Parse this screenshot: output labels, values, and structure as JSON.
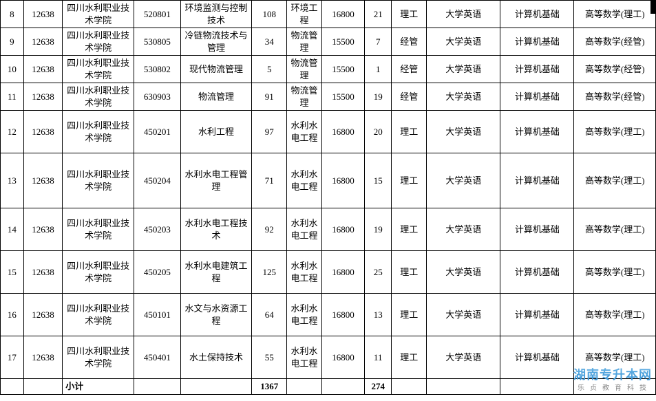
{
  "table": {
    "colWidthsClass": [
      "c0",
      "c1",
      "c2",
      "c3",
      "c4",
      "c5",
      "c6",
      "c7",
      "c8",
      "c9",
      "c10",
      "c11",
      "c12"
    ],
    "border_color": "#000000",
    "background_color": "#ffffff",
    "text_color": "#000000",
    "font_size": 13,
    "rows": [
      {
        "h": "short",
        "cells": [
          "8",
          "12638",
          "四川水利职业技术学院",
          "520801",
          "环境监测与控制技术",
          "108",
          "环境工程",
          "16800",
          "21",
          "理工",
          "大学英语",
          "计算机基础",
          "高等数学(理工)"
        ]
      },
      {
        "h": "short",
        "cells": [
          "9",
          "12638",
          "四川水利职业技术学院",
          "530805",
          "冷链物流技术与管理",
          "34",
          "物流管理",
          "15500",
          "7",
          "经管",
          "大学英语",
          "计算机基础",
          "高等数学(经管)"
        ]
      },
      {
        "h": "short",
        "cells": [
          "10",
          "12638",
          "四川水利职业技术学院",
          "530802",
          "现代物流管理",
          "5",
          "物流管理",
          "15500",
          "1",
          "经管",
          "大学英语",
          "计算机基础",
          "高等数学(经管)"
        ]
      },
      {
        "h": "short",
        "cells": [
          "11",
          "12638",
          "四川水利职业技术学院",
          "630903",
          "物流管理",
          "91",
          "物流管理",
          "15500",
          "19",
          "经管",
          "大学英语",
          "计算机基础",
          "高等数学(经管)"
        ]
      },
      {
        "h": "tall",
        "cells": [
          "12",
          "12638",
          "四川水利职业技术学院",
          "450201",
          "水利工程",
          "97",
          "水利水电工程",
          "16800",
          "20",
          "理工",
          "大学英语",
          "计算机基础",
          "高等数学(理工)"
        ]
      },
      {
        "h": "taller",
        "cells": [
          "13",
          "12638",
          "四川水利职业技术学院",
          "450204",
          "水利水电工程管理",
          "71",
          "水利水电工程",
          "16800",
          "15",
          "理工",
          "大学英语",
          "计算机基础",
          "高等数学(理工)"
        ]
      },
      {
        "h": "tall",
        "cells": [
          "14",
          "12638",
          "四川水利职业技术学院",
          "450203",
          "水利水电工程技术",
          "92",
          "水利水电工程",
          "16800",
          "19",
          "理工",
          "大学英语",
          "计算机基础",
          "高等数学(理工)"
        ]
      },
      {
        "h": "tall",
        "cells": [
          "15",
          "12638",
          "四川水利职业技术学院",
          "450205",
          "水利水电建筑工程",
          "125",
          "水利水电工程",
          "16800",
          "25",
          "理工",
          "大学英语",
          "计算机基础",
          "高等数学(理工)"
        ]
      },
      {
        "h": "tall",
        "cells": [
          "16",
          "12638",
          "四川水利职业技术学院",
          "450101",
          "水文与水资源工程",
          "64",
          "水利水电工程",
          "16800",
          "13",
          "理工",
          "大学英语",
          "计算机基础",
          "高等数学(理工)"
        ]
      },
      {
        "h": "tall",
        "cells": [
          "17",
          "12638",
          "四川水利职业技术学院",
          "450401",
          "水土保持技术",
          "55",
          "水利水电工程",
          "16800",
          "11",
          "理工",
          "大学英语",
          "计算机基础",
          "高等数学(理工)"
        ]
      }
    ],
    "summary": {
      "label": "小计",
      "col5": "1367",
      "col8": "274"
    }
  },
  "watermark": {
    "line1": "湖南专升本网",
    "line2": "乐贞教育科技",
    "color_top": "#4aa3e0",
    "color_bottom": "#888888"
  }
}
